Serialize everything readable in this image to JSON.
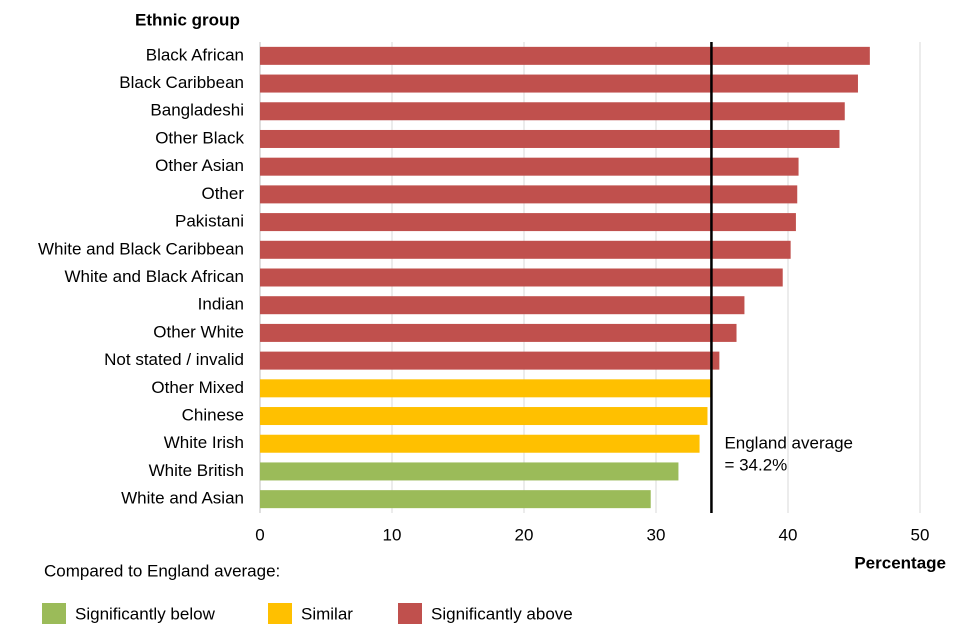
{
  "chart_data": {
    "type": "hbar",
    "y_axis_title": "Ethnic group",
    "x_axis_title": "Percentage",
    "categories": [
      "Black African",
      "Black Caribbean",
      "Bangladeshi",
      "Other Black",
      "Other Asian",
      "Other",
      "Pakistani",
      "White and Black Caribbean",
      "White and Black African",
      "Indian",
      "Other White",
      "Not stated / invalid",
      "Other Mixed",
      "Chinese",
      "White Irish",
      "White British",
      "White and Asian"
    ],
    "values": [
      46.2,
      45.3,
      44.3,
      43.9,
      40.8,
      40.7,
      40.6,
      40.2,
      39.6,
      36.7,
      36.1,
      34.8,
      34.2,
      33.9,
      33.3,
      31.7,
      29.6
    ],
    "bar_colors": [
      "#c0504d",
      "#c0504d",
      "#c0504d",
      "#c0504d",
      "#c0504d",
      "#c0504d",
      "#c0504d",
      "#c0504d",
      "#c0504d",
      "#c0504d",
      "#c0504d",
      "#c0504d",
      "#ffc000",
      "#ffc000",
      "#ffc000",
      "#9bbb59",
      "#9bbb59"
    ],
    "xlim": [
      0,
      50
    ],
    "xticks": [
      0,
      10,
      20,
      30,
      40,
      50
    ],
    "grid": true,
    "reference_line": {
      "value": 34.2,
      "label_lines": [
        "England average",
        "= 34.2%"
      ]
    },
    "legend_title": "Compared to England average:",
    "legend": [
      {
        "name": "Significantly below",
        "color": "#9bbb59"
      },
      {
        "name": "Similar",
        "color": "#ffc000"
      },
      {
        "name": "Significantly above",
        "color": "#c0504d"
      }
    ]
  }
}
